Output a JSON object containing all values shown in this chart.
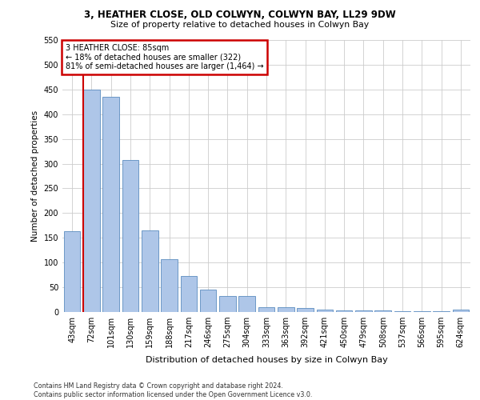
{
  "title": "3, HEATHER CLOSE, OLD COLWYN, COLWYN BAY, LL29 9DW",
  "subtitle": "Size of property relative to detached houses in Colwyn Bay",
  "xlabel": "Distribution of detached houses by size in Colwyn Bay",
  "ylabel": "Number of detached properties",
  "categories": [
    "43sqm",
    "72sqm",
    "101sqm",
    "130sqm",
    "159sqm",
    "188sqm",
    "217sqm",
    "246sqm",
    "275sqm",
    "304sqm",
    "333sqm",
    "363sqm",
    "392sqm",
    "421sqm",
    "450sqm",
    "479sqm",
    "508sqm",
    "537sqm",
    "566sqm",
    "595sqm",
    "624sqm"
  ],
  "values": [
    163,
    450,
    435,
    307,
    165,
    107,
    73,
    45,
    32,
    32,
    10,
    10,
    8,
    5,
    3,
    3,
    3,
    2,
    2,
    1,
    5
  ],
  "bar_color": "#aec6e8",
  "bar_edge_color": "#5b8cbf",
  "vline_x": 1,
  "annotation_text": "3 HEATHER CLOSE: 85sqm\n← 18% of detached houses are smaller (322)\n81% of semi-detached houses are larger (1,464) →",
  "annotation_box_color": "#ffffff",
  "annotation_box_edge": "#cc0000",
  "vline_color": "#cc0000",
  "footer_line1": "Contains HM Land Registry data © Crown copyright and database right 2024.",
  "footer_line2": "Contains public sector information licensed under the Open Government Licence v3.0.",
  "ylim": [
    0,
    550
  ],
  "yticks": [
    0,
    50,
    100,
    150,
    200,
    250,
    300,
    350,
    400,
    450,
    500,
    550
  ],
  "background_color": "#ffffff",
  "grid_color": "#cccccc"
}
